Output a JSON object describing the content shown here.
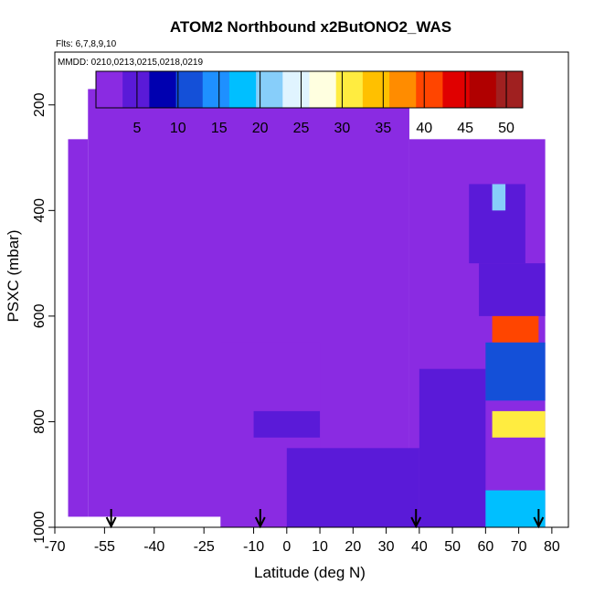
{
  "chart_data": {
    "type": "heatmap",
    "title": "ATOM2 Northbound x2ButONO2_WAS",
    "flights_label": "Flts: 6,7,8,9,10",
    "dates_label": "MMDD: 0210,0213,0215,0218,0219",
    "xlabel": "Latitude (deg N)",
    "ylabel": "PSXC (mbar)",
    "xlim": [
      -70,
      85
    ],
    "ylim": [
      1000,
      100
    ],
    "x_ticks": [
      -70,
      -55,
      -40,
      -25,
      -10,
      0,
      10,
      20,
      30,
      40,
      50,
      60,
      70,
      80
    ],
    "y_ticks": [
      200,
      400,
      600,
      800,
      1000
    ],
    "colorbar": {
      "range": [
        0,
        52
      ],
      "ticks": [
        5,
        10,
        15,
        20,
        25,
        30,
        35,
        40,
        45,
        50
      ],
      "colors": [
        "#8a2be2",
        "#5a1ad8",
        "#0000b0",
        "#1450d8",
        "#1e90ff",
        "#00bfff",
        "#87cefa",
        "#e0f4ff",
        "#ffffe0",
        "#ffec40",
        "#ffc000",
        "#ff8c00",
        "#ff4500",
        "#e00000",
        "#b00000",
        "#a02020"
      ]
    },
    "regions": [
      {
        "lat": [
          -60,
          37
        ],
        "p": [
          170,
          980
        ],
        "value": 1
      },
      {
        "lat": [
          -66,
          -60
        ],
        "p": [
          265,
          980
        ],
        "value": 1
      },
      {
        "lat": [
          37,
          78
        ],
        "p": [
          265,
          1000
        ],
        "value": 2
      },
      {
        "lat": [
          -20,
          10
        ],
        "p": [
          650,
          1000
        ],
        "value": 3
      },
      {
        "lat": [
          0,
          40
        ],
        "p": [
          850,
          1000
        ],
        "value": 5
      },
      {
        "lat": [
          40,
          60
        ],
        "p": [
          700,
          1000
        ],
        "value": 6
      },
      {
        "lat": [
          55,
          72
        ],
        "p": [
          350,
          500
        ],
        "value": 5
      },
      {
        "lat": [
          62,
          66
        ],
        "p": [
          350,
          400
        ],
        "value": 22
      },
      {
        "lat": [
          58,
          78
        ],
        "p": [
          500,
          600
        ],
        "value": 6
      },
      {
        "lat": [
          62,
          76
        ],
        "p": [
          600,
          650
        ],
        "value": 40
      },
      {
        "lat": [
          60,
          78
        ],
        "p": [
          650,
          760
        ],
        "value": 12
      },
      {
        "lat": [
          62,
          78
        ],
        "p": [
          780,
          830
        ],
        "value": 32
      },
      {
        "lat": [
          -10,
          10
        ],
        "p": [
          780,
          830
        ],
        "value": 6
      },
      {
        "lat": [
          60,
          78
        ],
        "p": [
          930,
          1000
        ],
        "value": 18
      }
    ],
    "arrows_lat": [
      -53,
      -8,
      39,
      76
    ]
  }
}
